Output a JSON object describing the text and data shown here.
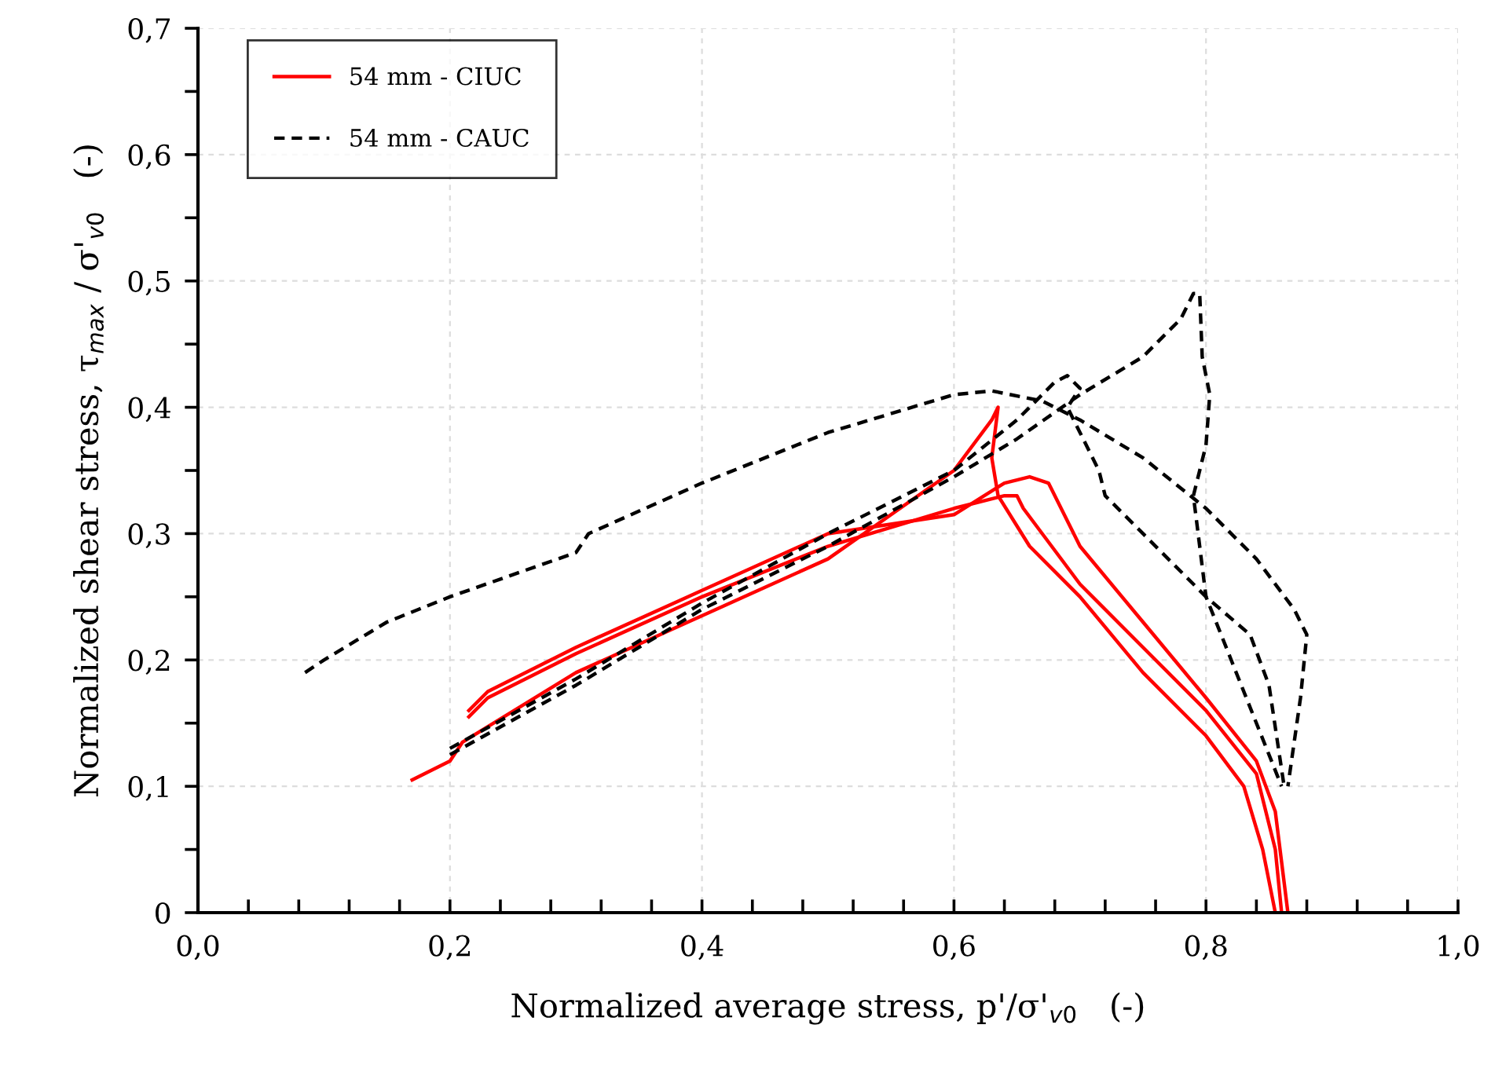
{
  "chart_data": {
    "type": "line",
    "xlabel": "Normalized average stress, p'/σ'$_{v0}$   (-)",
    "ylabel": "Normalized shear stress, τ$_{max}$ / σ'$_{v0}$   (-)",
    "xlim": [
      0,
      1.0
    ],
    "ylim": [
      0,
      0.7
    ],
    "xticks": [
      {
        "value": 0,
        "label": "0,0"
      },
      {
        "value": 0.04,
        "label": null
      },
      {
        "value": 0.08,
        "label": null
      },
      {
        "value": 0.12,
        "label": null
      },
      {
        "value": 0.16,
        "label": null
      },
      {
        "value": 0.2,
        "label": "0,2"
      },
      {
        "value": 0.24,
        "label": null
      },
      {
        "value": 0.28,
        "label": null
      },
      {
        "value": 0.32,
        "label": null
      },
      {
        "value": 0.36,
        "label": null
      },
      {
        "value": 0.4,
        "label": "0,4"
      },
      {
        "value": 0.44,
        "label": null
      },
      {
        "value": 0.48,
        "label": null
      },
      {
        "value": 0.52,
        "label": null
      },
      {
        "value": 0.56,
        "label": null
      },
      {
        "value": 0.6,
        "label": "0,6"
      },
      {
        "value": 0.64,
        "label": null
      },
      {
        "value": 0.68,
        "label": null
      },
      {
        "value": 0.72,
        "label": null
      },
      {
        "value": 0.76,
        "label": null
      },
      {
        "value": 0.8,
        "label": "0,8"
      },
      {
        "value": 0.84,
        "label": null
      },
      {
        "value": 0.88,
        "label": null
      },
      {
        "value": 0.92,
        "label": null
      },
      {
        "value": 0.96,
        "label": null
      },
      {
        "value": 1.0,
        "label": "1,0"
      }
    ],
    "yticks": [
      0,
      {
        "value": 0.05,
        "label": null
      },
      {
        "value": 0.1,
        "label": "0,1"
      },
      {
        "value": 0.15,
        "label": null
      },
      {
        "value": 0.2,
        "label": "0,2"
      },
      {
        "value": 0.25,
        "label": null
      },
      {
        "value": 0.3,
        "label": "0,3"
      },
      {
        "value": 0.35,
        "label": null
      },
      {
        "value": 0.4,
        "label": "0,4"
      },
      {
        "value": 0.45,
        "label": null
      },
      {
        "value": 0.5,
        "label": "0,5"
      },
      {
        "value": 0.55,
        "label": null
      },
      {
        "value": 0.6,
        "label": "0,6"
      },
      {
        "value": 0.65,
        "label": null
      },
      {
        "value": 0.7,
        "label": "0,7"
      }
    ],
    "grid": true,
    "legend": "top left",
    "marker": "none",
    "series": [
      {
        "name": "54 mm - CIUC",
        "color": "#ff0000",
        "line_style": "solid",
        "x": [
          0.17,
          0.2,
          0.21,
          0.3,
          0.4,
          0.5,
          0.6,
          0.63,
          0.635,
          0.63,
          0.635,
          0.66,
          0.7,
          0.75,
          0.8,
          0.83,
          0.845,
          0.855
        ],
        "values": [
          0.105,
          0.12,
          0.135,
          0.19,
          0.235,
          0.28,
          0.35,
          0.39,
          0.4,
          0.36,
          0.33,
          0.29,
          0.25,
          0.19,
          0.14,
          0.1,
          0.05,
          0.0
        ]
      },
      {
        "color": "#ff0000",
        "line_style": "solid",
        "x": [
          0.215,
          0.23,
          0.3,
          0.4,
          0.5,
          0.6,
          0.64,
          0.65,
          0.655,
          0.7,
          0.75,
          0.8,
          0.84,
          0.855,
          0.86
        ],
        "values": [
          0.155,
          0.17,
          0.205,
          0.25,
          0.29,
          0.32,
          0.33,
          0.33,
          0.32,
          0.26,
          0.21,
          0.16,
          0.11,
          0.05,
          0.0
        ]
      },
      {
        "color": "#ff0000",
        "line_style": "solid",
        "x": [
          0.215,
          0.23,
          0.3,
          0.4,
          0.5,
          0.6,
          0.64,
          0.66,
          0.675,
          0.7,
          0.75,
          0.8,
          0.84,
          0.855,
          0.865
        ],
        "values": [
          0.16,
          0.175,
          0.21,
          0.255,
          0.3,
          0.315,
          0.34,
          0.345,
          0.34,
          0.29,
          0.23,
          0.17,
          0.12,
          0.08,
          0.0
        ]
      },
      {
        "name": "54 mm - CAUC",
        "color": "#000000",
        "line_style": "dashed",
        "x": [
          0.085,
          0.1,
          0.15,
          0.2,
          0.3,
          0.31,
          0.4,
          0.5,
          0.6,
          0.63,
          0.67,
          0.7,
          0.75,
          0.8,
          0.84,
          0.87,
          0.88,
          0.875,
          0.865
        ],
        "values": [
          0.19,
          0.2,
          0.23,
          0.25,
          0.285,
          0.3,
          0.34,
          0.38,
          0.41,
          0.413,
          0.405,
          0.39,
          0.36,
          0.32,
          0.28,
          0.24,
          0.22,
          0.17,
          0.1
        ]
      },
      {
        "color": "#000000",
        "line_style": "dashed",
        "x": [
          0.2,
          0.3,
          0.4,
          0.5,
          0.6,
          0.65,
          0.7,
          0.75,
          0.78,
          0.79,
          0.795,
          0.797,
          0.803,
          0.8,
          0.79,
          0.795,
          0.8,
          0.82,
          0.86
        ],
        "values": [
          0.125,
          0.18,
          0.24,
          0.29,
          0.345,
          0.375,
          0.41,
          0.44,
          0.47,
          0.49,
          0.49,
          0.44,
          0.41,
          0.37,
          0.33,
          0.29,
          0.25,
          0.2,
          0.1
        ]
      },
      {
        "color": "#000000",
        "line_style": "dashed",
        "x": [
          0.2,
          0.3,
          0.4,
          0.5,
          0.6,
          0.65,
          0.68,
          0.69,
          0.7,
          0.69,
          0.7,
          0.715,
          0.72,
          0.75,
          0.8,
          0.835,
          0.85,
          0.862
        ],
        "values": [
          0.13,
          0.185,
          0.245,
          0.3,
          0.35,
          0.39,
          0.42,
          0.425,
          0.415,
          0.4,
          0.38,
          0.35,
          0.33,
          0.3,
          0.25,
          0.22,
          0.18,
          0.1
        ]
      }
    ]
  }
}
